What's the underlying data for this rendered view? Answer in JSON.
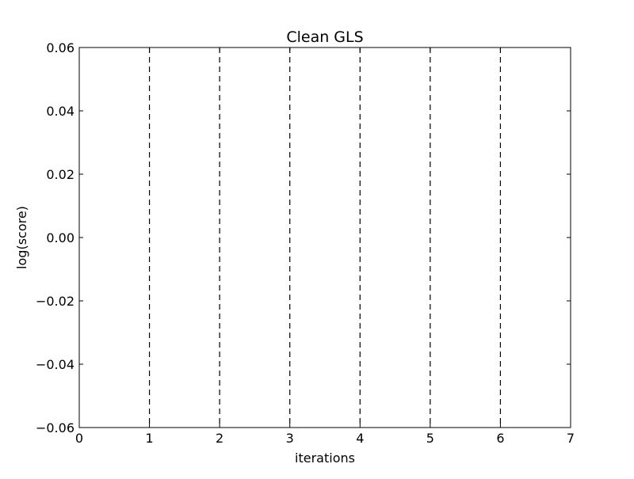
{
  "chart_data": {
    "type": "line",
    "title": "Clean GLS",
    "xlabel": "iterations",
    "ylabel": "log(score)",
    "xlim": [
      0,
      7
    ],
    "ylim": [
      -0.06,
      0.06
    ],
    "x_ticks": [
      0,
      1,
      2,
      3,
      4,
      5,
      6,
      7
    ],
    "x_tick_labels": [
      "0",
      "1",
      "2",
      "3",
      "4",
      "5",
      "6",
      "7"
    ],
    "y_ticks": [
      -0.06,
      -0.04,
      -0.02,
      0.0,
      0.02,
      0.04,
      0.06
    ],
    "y_tick_labels": [
      "−0.06",
      "−0.04",
      "−0.02",
      "0.00",
      "0.02",
      "0.04",
      "0.06"
    ],
    "vertical_lines": {
      "x": [
        1,
        2,
        3,
        4,
        5,
        6
      ],
      "style": "dashed",
      "color": "#000000"
    },
    "series": [],
    "grid": false,
    "legend": "none"
  }
}
